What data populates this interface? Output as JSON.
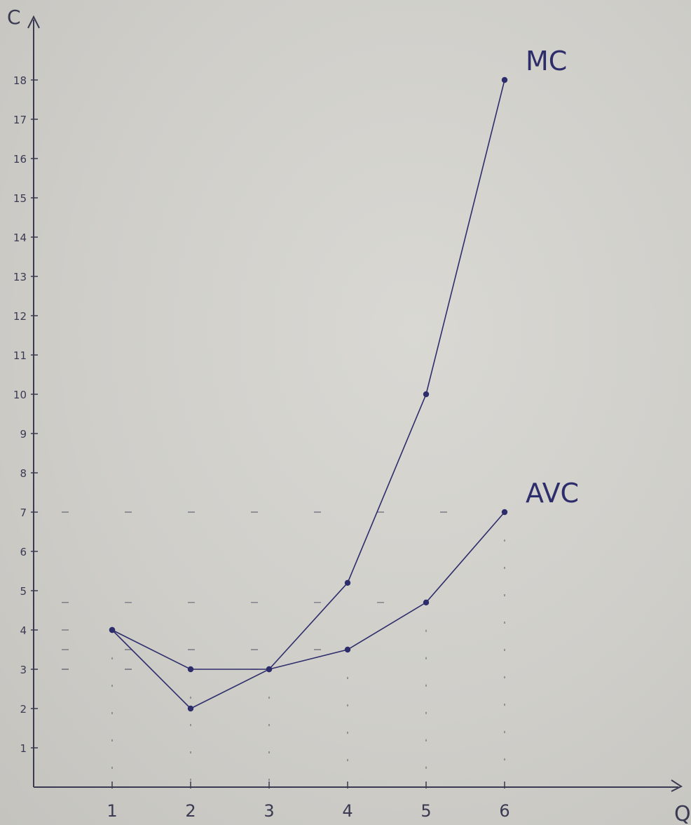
{
  "chart_data": {
    "type": "line",
    "axis_labels": {
      "y": "C",
      "x": "Q"
    },
    "x_ticks": [
      "1",
      "2",
      "3",
      "4",
      "5",
      "6"
    ],
    "y_ticks": [
      "1",
      "2",
      "3",
      "4",
      "5",
      "6",
      "7",
      "8",
      "9",
      "10",
      "11",
      "12",
      "13",
      "14",
      "15",
      "16",
      "17",
      "18"
    ],
    "xlim": [
      0,
      7.3
    ],
    "ylim": [
      0,
      20
    ],
    "grid": false,
    "series": [
      {
        "name": "MC",
        "x": [
          1,
          2,
          3,
          4,
          5,
          6
        ],
        "y": [
          4,
          2,
          3,
          5.2,
          10,
          18
        ]
      },
      {
        "name": "AVC",
        "x": [
          1,
          2,
          3,
          4,
          5,
          6
        ],
        "y": [
          4,
          3,
          3,
          3.5,
          4.7,
          7
        ]
      }
    ],
    "colors": {
      "ink": "#2e2d6b",
      "axis": "#3a3a52",
      "guide": "#6a6a7a"
    }
  }
}
